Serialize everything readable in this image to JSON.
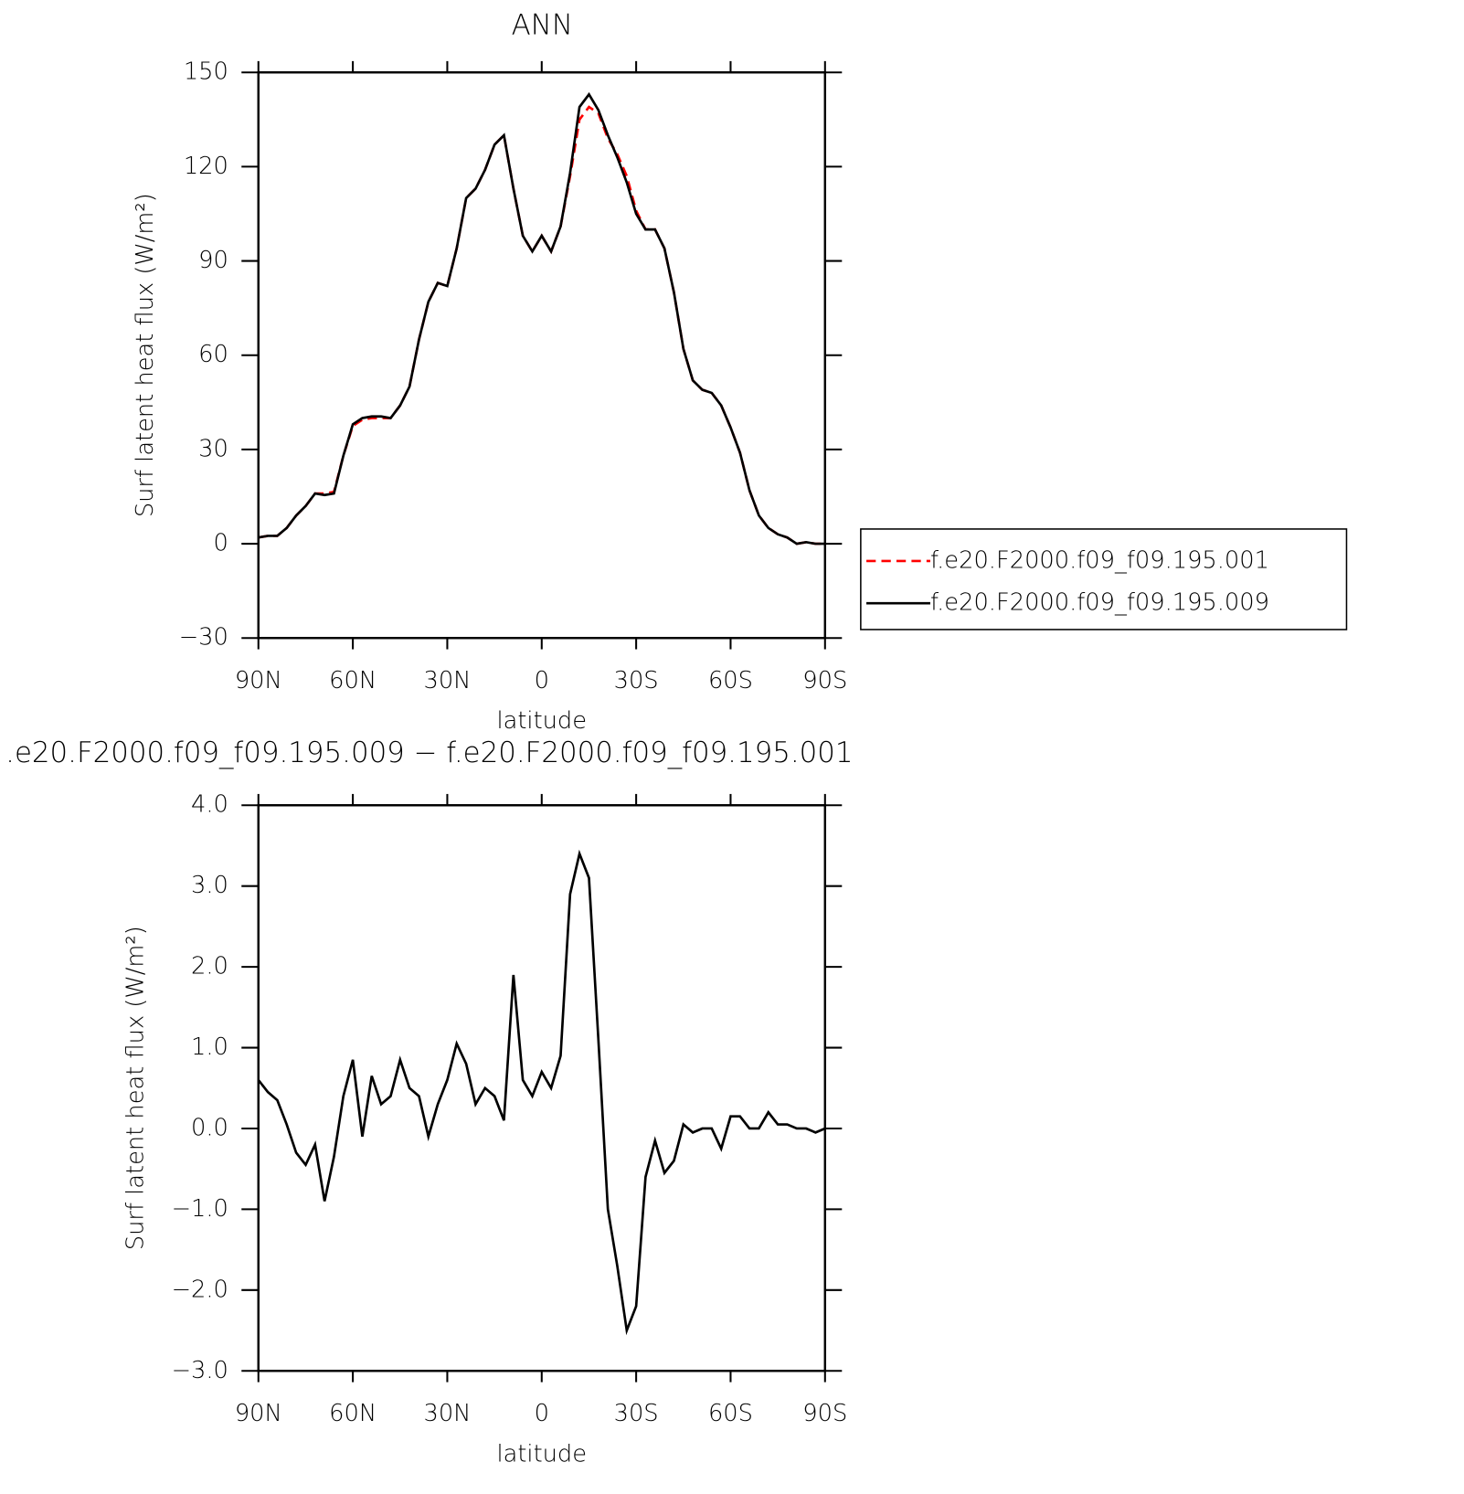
{
  "chart_data": [
    {
      "type": "line",
      "title": "ANN",
      "x_label": "latitude",
      "y_label": "Surf latent heat flux (W/m²)",
      "x": [
        90,
        87,
        84,
        81,
        78,
        75,
        72,
        69,
        66,
        63,
        60,
        57,
        54,
        51,
        48,
        45,
        42,
        39,
        36,
        33,
        30,
        27,
        24,
        21,
        18,
        15,
        12,
        9,
        6,
        3,
        0,
        -3,
        -6,
        -9,
        -12,
        -15,
        -18,
        -21,
        -24,
        -27,
        -30,
        -33,
        -36,
        -39,
        -42,
        -45,
        -48,
        -51,
        -54,
        -57,
        -60,
        -63,
        -66,
        -69,
        -72,
        -75,
        -78,
        -81,
        -84,
        -87,
        -90
      ],
      "series": [
        {
          "name": "f.e20.F2000.f09_f09.195.001",
          "color": "#ff0000",
          "dash": "dashed",
          "values": [
            2,
            2.5,
            2.5,
            5,
            9,
            12,
            16,
            16,
            16.5,
            28,
            37.5,
            39.5,
            40,
            40,
            40,
            44,
            50,
            65,
            77,
            83,
            82,
            94,
            110,
            113,
            119,
            127,
            130,
            113,
            98,
            93,
            98,
            93,
            101,
            117,
            135,
            139,
            137,
            129,
            124,
            117,
            106,
            100,
            100,
            94,
            80,
            62,
            52,
            49,
            48,
            44,
            37,
            29,
            17,
            9,
            5,
            3,
            2,
            0,
            0.5,
            0,
            0
          ]
        },
        {
          "name": "f.e20.F2000.f09_f09.195.009",
          "color": "#000000",
          "dash": "solid",
          "values": [
            2,
            2.5,
            2.5,
            5,
            9,
            12,
            16,
            15.5,
            16,
            28,
            38,
            40,
            40.5,
            40.5,
            40,
            44,
            50,
            65,
            77,
            83,
            82,
            94,
            110,
            113,
            119,
            127,
            130,
            113,
            98,
            93,
            98,
            93,
            101,
            118,
            139,
            143,
            138,
            130,
            123,
            115,
            105,
            100,
            100,
            94,
            80,
            62,
            52,
            49,
            48,
            44,
            37,
            29,
            17,
            9,
            5,
            3,
            2,
            0,
            0.5,
            0,
            0
          ]
        }
      ],
      "xlim": [
        90,
        -90
      ],
      "xticks": [
        {
          "value": 90,
          "label": "90N"
        },
        {
          "value": 60,
          "label": "60N"
        },
        {
          "value": 30,
          "label": "30N"
        },
        0,
        {
          "value": -30,
          "label": "30S"
        },
        {
          "value": -60,
          "label": "60S"
        },
        {
          "value": -90,
          "label": "90S"
        }
      ],
      "ylim": [
        -30,
        150
      ],
      "yticks": [
        {
          "value": -30,
          "label": "−30"
        },
        0,
        30,
        60,
        90,
        120,
        150
      ],
      "legend": "outside-right"
    },
    {
      "type": "line",
      "title": ".e20.F2000.f09_f09.195.009 − f.e20.F2000.f09_f09.195.001",
      "x_label": "latitude",
      "y_label": "Surf latent heat flux (W/m²)",
      "x": [
        90,
        87,
        84,
        81,
        78,
        75,
        72,
        69,
        66,
        63,
        60,
        57,
        54,
        51,
        48,
        45,
        42,
        39,
        36,
        33,
        30,
        27,
        24,
        21,
        18,
        15,
        12,
        9,
        6,
        3,
        0,
        -3,
        -6,
        -9,
        -12,
        -15,
        -18,
        -21,
        -24,
        -27,
        -30,
        -33,
        -36,
        -39,
        -42,
        -45,
        -48,
        -51,
        -54,
        -57,
        -60,
        -63,
        -66,
        -69,
        -72,
        -75,
        -78,
        -81,
        -84,
        -87,
        -90
      ],
      "series": [
        {
          "color": "#000000",
          "dash": "solid",
          "values": [
            0.6,
            0.45,
            0.35,
            0.05,
            -0.3,
            -0.45,
            -0.2,
            -0.9,
            -0.35,
            0.4,
            0.85,
            -0.1,
            0.65,
            0.3,
            0.4,
            0.85,
            0.5,
            0.4,
            -0.1,
            0.3,
            0.6,
            1.05,
            0.8,
            0.3,
            0.5,
            0.4,
            0.1,
            1.9,
            0.6,
            0.4,
            0.7,
            0.5,
            0.9,
            2.9,
            3.4,
            3.1,
            1.1,
            -1,
            -1.7,
            -2.5,
            -2.2,
            -0.6,
            -0.15,
            -0.55,
            -0.4,
            0.05,
            -0.05,
            0,
            0,
            -0.25,
            0.15,
            0.15,
            0,
            0,
            0.2,
            0.05,
            0.05,
            0,
            0,
            -0.05,
            0
          ]
        }
      ],
      "xlim": [
        90,
        -90
      ],
      "xticks": [
        {
          "value": 90,
          "label": "90N"
        },
        {
          "value": 60,
          "label": "60N"
        },
        {
          "value": 30,
          "label": "30N"
        },
        0,
        {
          "value": -30,
          "label": "30S"
        },
        {
          "value": -60,
          "label": "60S"
        },
        {
          "value": -90,
          "label": "90S"
        }
      ],
      "ylim": [
        -3,
        4
      ],
      "yticks": [
        {
          "value": -3,
          "label": "−3.0"
        },
        {
          "value": -2,
          "label": "−2.0"
        },
        {
          "value": -1,
          "label": "−1.0"
        },
        {
          "value": 0,
          "label": "0.0"
        },
        {
          "value": 1,
          "label": "1.0"
        },
        {
          "value": 2,
          "label": "2.0"
        },
        {
          "value": 3,
          "label": "3.0"
        },
        {
          "value": 4,
          "label": "4.0"
        }
      ]
    }
  ]
}
